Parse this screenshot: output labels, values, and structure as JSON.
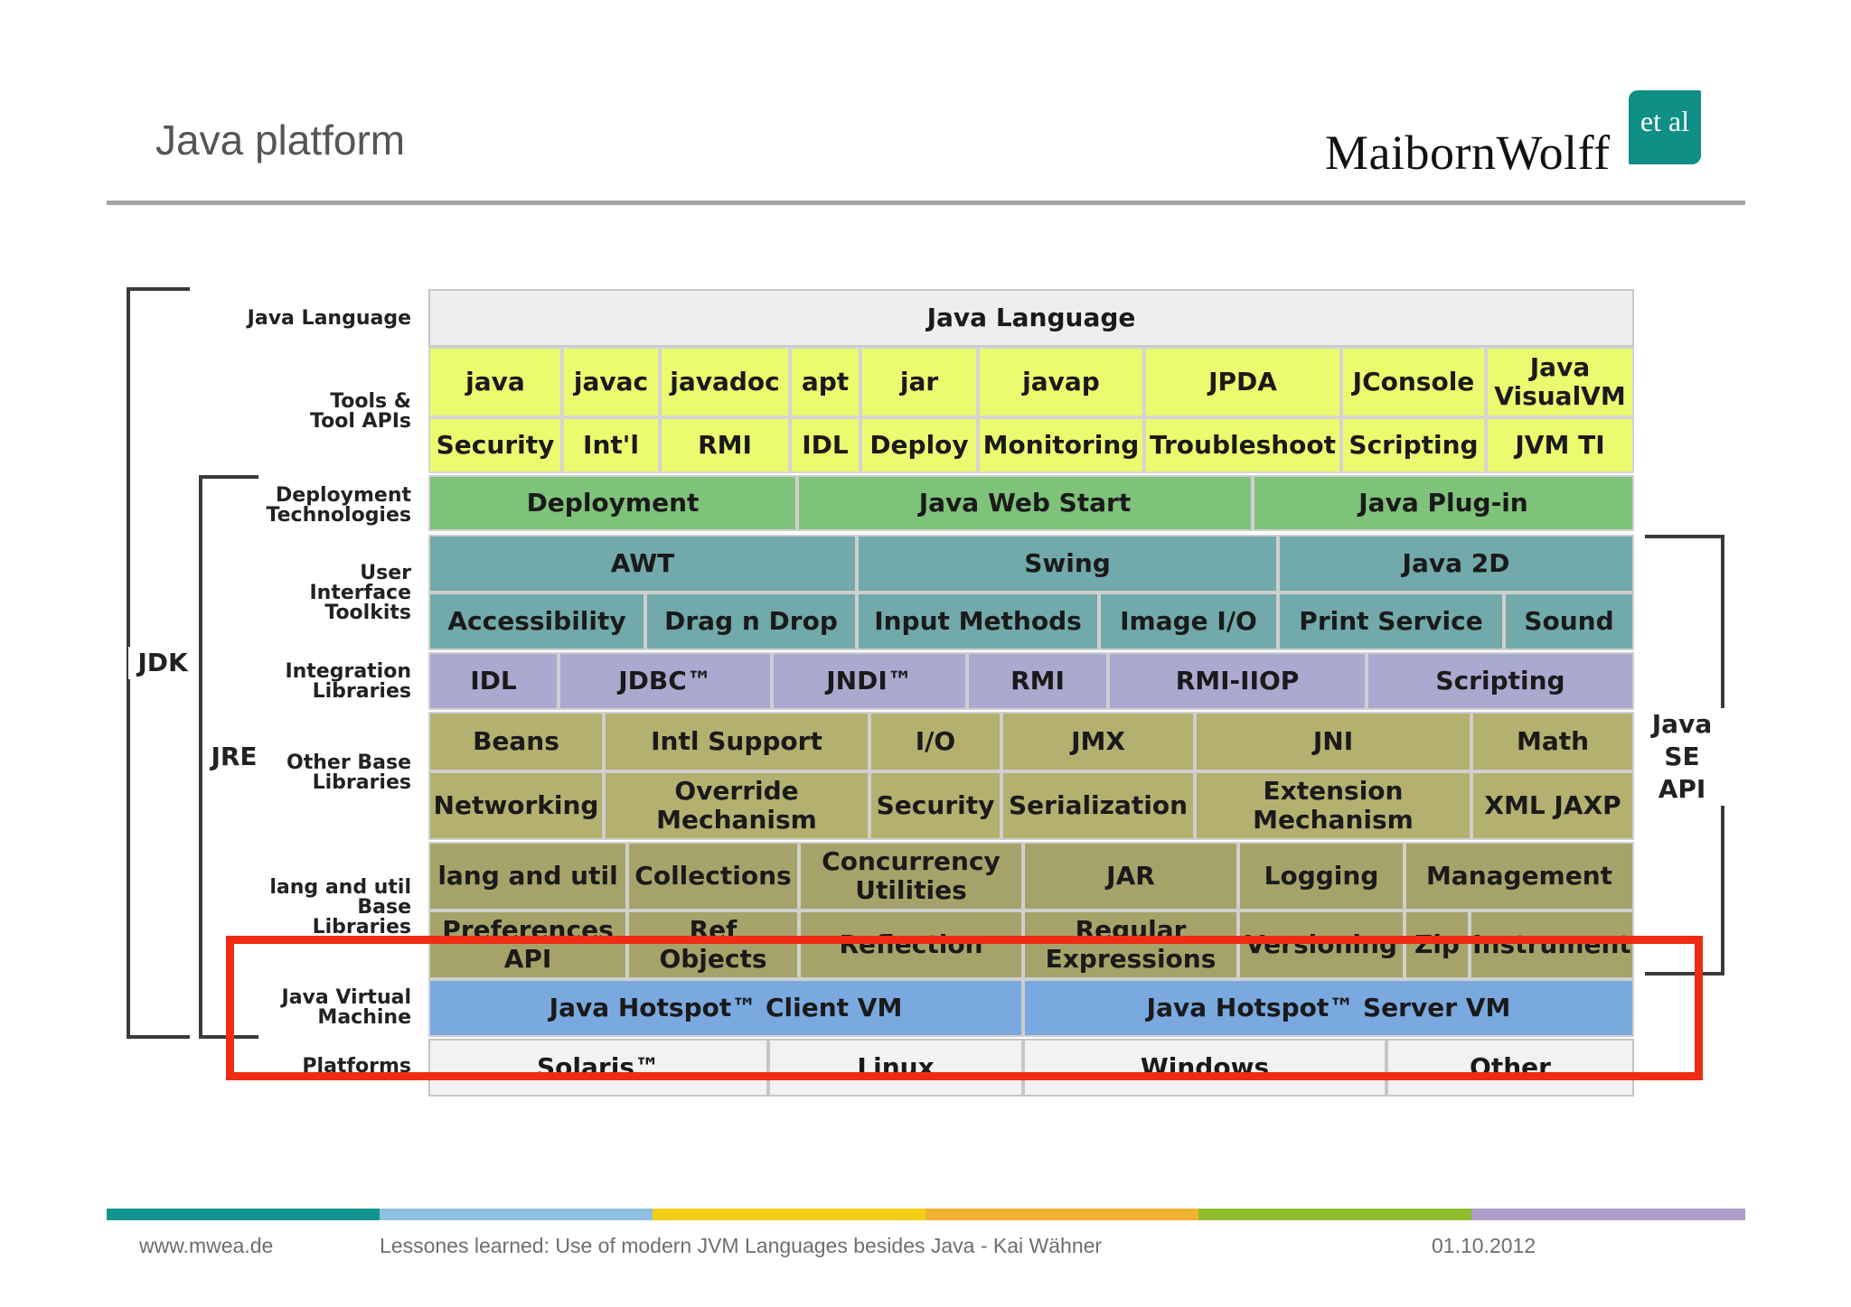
{
  "slide": {
    "title": "Java platform",
    "logo_text": "MaibornWolff",
    "logo_badge": "et al"
  },
  "diagram": {
    "brackets": {
      "jdk": "JDK",
      "jre": "JRE",
      "java_se_api": "Java\nSE\nAPI"
    },
    "row_labels": {
      "java_language": "Java Language",
      "tools": "Tools &\nTool APIs",
      "deployment": "Deployment\nTechnologies",
      "ui": "User\nInterface\nToolkits",
      "integration": "Integration\nLibraries",
      "other_base": "Other Base\nLibraries",
      "lang_util": "lang and util\nBase\nLibraries",
      "jvm": "Java Virtual\nMachine",
      "platforms": "Platforms"
    },
    "java_language": "Java Language",
    "tools_row1": [
      "java",
      "javac",
      "javadoc",
      "apt",
      "jar",
      "javap",
      "JPDA",
      "JConsole",
      "Java\nVisualVM"
    ],
    "tools_row2": [
      "Security",
      "Int'l",
      "RMI",
      "IDL",
      "Deploy",
      "Monitoring",
      "Troubleshoot",
      "Scripting",
      "JVM TI"
    ],
    "deployment": [
      "Deployment",
      "Java Web Start",
      "Java Plug-in"
    ],
    "ui_row1": [
      "AWT",
      "Swing",
      "Java 2D"
    ],
    "ui_row2": [
      "Accessibility",
      "Drag n Drop",
      "Input Methods",
      "Image I/O",
      "Print Service",
      "Sound"
    ],
    "integration": [
      "IDL",
      "JDBC™",
      "JNDI™",
      "RMI",
      "RMI-IIOP",
      "Scripting"
    ],
    "other_row1": [
      "Beans",
      "Intl Support",
      "I/O",
      "JMX",
      "JNI",
      "Math"
    ],
    "other_row2": [
      "Networking",
      "Override\nMechanism",
      "Security",
      "Serialization",
      "Extension\nMechanism",
      "XML JAXP"
    ],
    "langutil_row1": [
      "lang and util",
      "Collections",
      "Concurrency\nUtilities",
      "JAR",
      "Logging",
      "Management"
    ],
    "langutil_row2": [
      "Preferences\nAPI",
      "Ref\nObjects",
      "Reflection",
      "Regular\nExpressions",
      "Versioning",
      "Zip",
      "Instrument"
    ],
    "jvm": [
      "Java Hotspot™ Client VM",
      "Java Hotspot™ Server VM"
    ],
    "platforms": [
      "Solaris™",
      "Linux",
      "Windows",
      "Other"
    ]
  },
  "footer": {
    "website": "www.mwea.de",
    "talk": "Lessones learned: Use of modern JVM Languages besides Java - Kai Wähner",
    "date": "01.10.2012",
    "bar_colors": [
      "#12958f",
      "#8cbfe0",
      "#f5cf17",
      "#f2b231",
      "#90bd2c",
      "#b09bca"
    ]
  },
  "colors": {
    "highlight": "#ef2b15",
    "language": "#eeeeee",
    "tools": "#eafb70",
    "deployment": "#7fc27a",
    "ui": "#72a9aa",
    "integration": "#aba9cf",
    "other_base": "#b4b070",
    "lang_util": "#a6a36a",
    "jvm": "#7aa9df",
    "platforms": "#f2f2f2"
  }
}
